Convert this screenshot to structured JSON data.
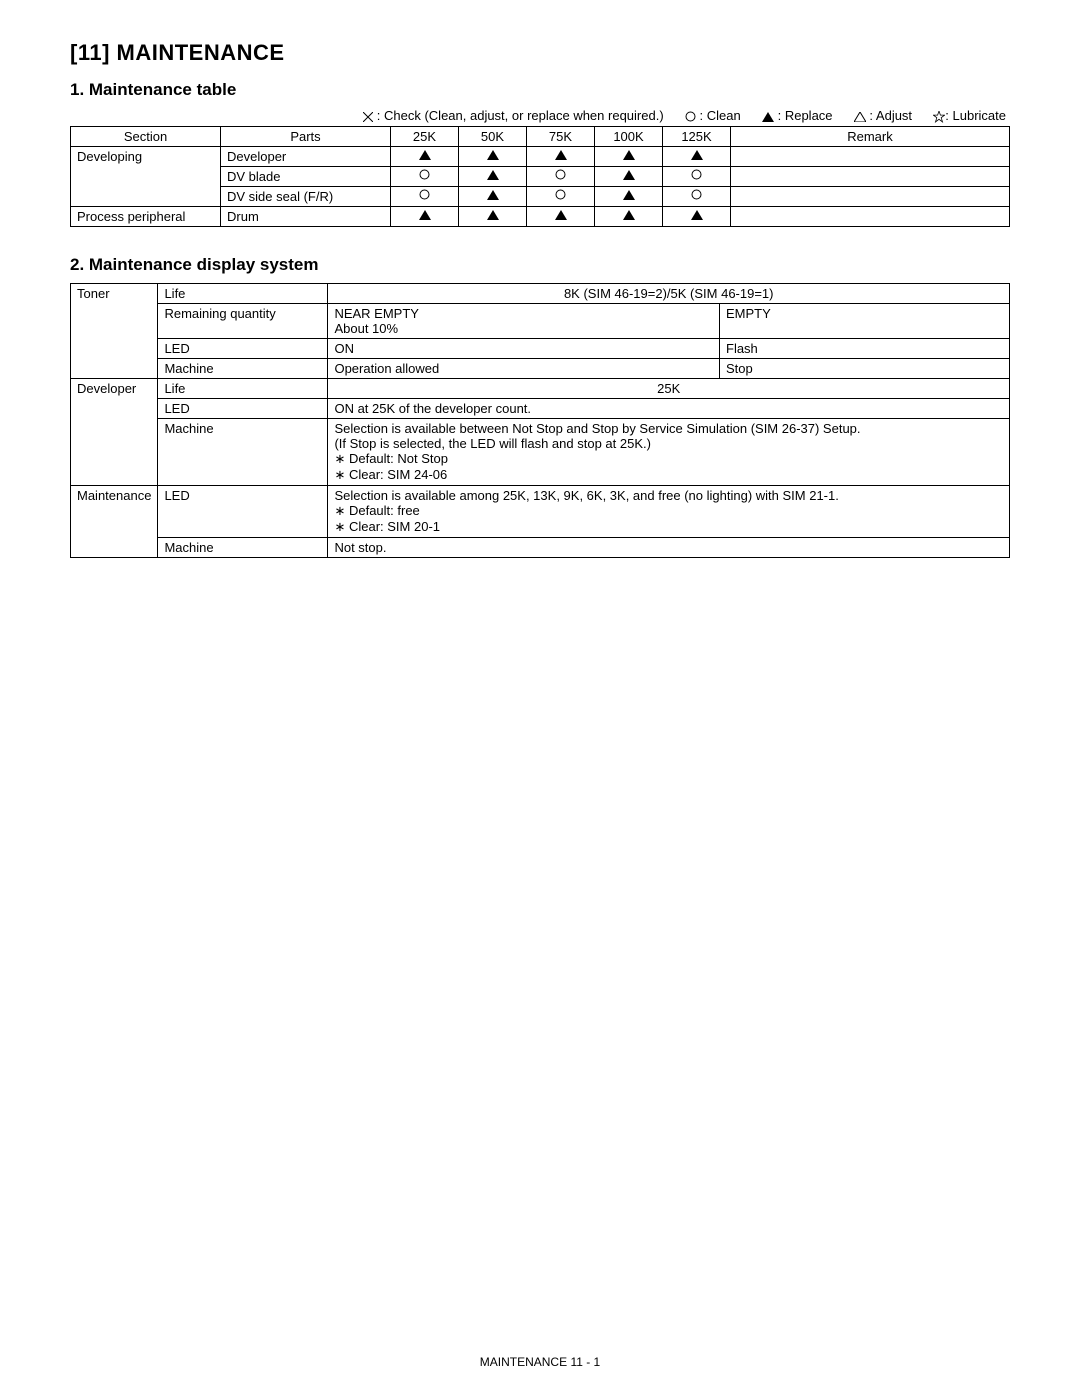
{
  "chapter_title": "[11]  MAINTENANCE",
  "section1_title": "1. Maintenance table",
  "section2_title": "2. Maintenance display system",
  "legend": {
    "check": ": Check (Clean, adjust, or replace when required.)",
    "clean": ": Clean",
    "replace": ": Replace",
    "adjust": ": Adjust",
    "lubricate": ": Lubricate"
  },
  "maint_table": {
    "headers": [
      "Section",
      "Parts",
      "25K",
      "50K",
      "75K",
      "100K",
      "125K",
      "Remark"
    ],
    "rows": [
      {
        "section": "Developing",
        "parts": "Developer",
        "k": [
          "tri",
          "tri",
          "tri",
          "tri",
          "tri"
        ],
        "remark": ""
      },
      {
        "section": "",
        "parts": "DV blade",
        "k": [
          "circ",
          "tri",
          "circ",
          "tri",
          "circ"
        ],
        "remark": ""
      },
      {
        "section": "",
        "parts": "DV side seal (F/R)",
        "k": [
          "circ",
          "tri",
          "circ",
          "tri",
          "circ"
        ],
        "remark": ""
      },
      {
        "section": "Process peripheral",
        "parts": "Drum",
        "k": [
          "tri",
          "tri",
          "tri",
          "tri",
          "tri"
        ],
        "remark": ""
      }
    ]
  },
  "disp_table": {
    "toner": {
      "label": "Toner",
      "life_label": "Life",
      "life_value": "8K (SIM 46-19=2)/5K (SIM 46-19=1)",
      "rq_label": "Remaining quantity",
      "rq_left_1": "NEAR EMPTY",
      "rq_left_2": "About 10%",
      "rq_right": "EMPTY",
      "led_label": "LED",
      "led_left": "ON",
      "led_right": "Flash",
      "machine_label": "Machine",
      "machine_left": "Operation allowed",
      "machine_right": "Stop"
    },
    "developer": {
      "label": "Developer",
      "life_label": "Life",
      "life_value": "25K",
      "led_label": "LED",
      "led_value": "ON at 25K of the developer count.",
      "machine_label": "Machine",
      "machine_line1": "Selection is available between Not Stop and Stop by Service Simulation (SIM 26-37) Setup.",
      "machine_line2": "(If Stop is selected, the LED will flash and stop at 25K.)",
      "machine_bullet1": "Default: Not Stop",
      "machine_bullet2": "Clear: SIM 24-06"
    },
    "maintenance": {
      "label": "Maintenance",
      "led_label": "LED",
      "led_line1": "Selection is available among 25K, 13K, 9K, 6K, 3K, and free (no lighting) with SIM 21-1.",
      "led_bullet1": "Default: free",
      "led_bullet2": "Clear: SIM 20-1",
      "machine_label": "Machine",
      "machine_value": "Not stop."
    }
  },
  "footer": "MAINTENANCE  11 - 1",
  "symbols": {
    "tri_fill": "#000000",
    "tri_stroke": "#000000",
    "circ_stroke": "#000000",
    "cross_stroke": "#000000",
    "star_stroke": "#000000"
  }
}
